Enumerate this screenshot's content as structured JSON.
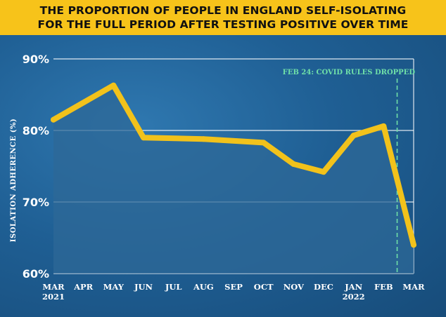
{
  "title_lines": [
    "THE PROPORTION OF PEOPLE IN ENGLAND SELF-ISOLATING",
    "FOR THE FULL PERIOD AFTER TESTING POSITIVE OVER TIME"
  ],
  "colors": {
    "title_bg": "#f7c31a",
    "line": "#f2c21b",
    "plot_fill": "#2e6897",
    "grid": "#ffffff",
    "annotation": "#6fe0a8"
  },
  "chart_data": {
    "type": "line",
    "title": "THE PROPORTION OF PEOPLE IN ENGLAND SELF-ISOLATING FOR THE FULL PERIOD AFTER TESTING POSITIVE OVER TIME",
    "ylabel": "ISOLATION ADHERENCE (%)",
    "xlabel": "",
    "ylim": [
      60,
      90
    ],
    "yticks": [
      {
        "value": 90,
        "label": "90%"
      },
      {
        "value": 80,
        "label": "80%"
      },
      {
        "value": 70,
        "label": "70%"
      },
      {
        "value": 60,
        "label": "60%"
      }
    ],
    "xticks": [
      {
        "x": 0,
        "label": "MAR",
        "sub": "2021"
      },
      {
        "x": 1,
        "label": "APR"
      },
      {
        "x": 2,
        "label": "MAY"
      },
      {
        "x": 3,
        "label": "JUN"
      },
      {
        "x": 4,
        "label": "JUL"
      },
      {
        "x": 5,
        "label": "AUG"
      },
      {
        "x": 6,
        "label": "SEP"
      },
      {
        "x": 7,
        "label": "OCT"
      },
      {
        "x": 8,
        "label": "NOV"
      },
      {
        "x": 9,
        "label": "DEC"
      },
      {
        "x": 10,
        "label": "JAN",
        "sub": "2022"
      },
      {
        "x": 11,
        "label": "FEB"
      },
      {
        "x": 12,
        "label": "MAR"
      }
    ],
    "points": [
      {
        "x": 0,
        "y": 81.5
      },
      {
        "x": 2,
        "y": 86.3
      },
      {
        "x": 3,
        "y": 79.0
      },
      {
        "x": 5,
        "y": 78.8
      },
      {
        "x": 7,
        "y": 78.3
      },
      {
        "x": 8,
        "y": 75.3
      },
      {
        "x": 9,
        "y": 74.2
      },
      {
        "x": 10,
        "y": 79.3
      },
      {
        "x": 11,
        "y": 80.6
      },
      {
        "x": 12,
        "y": 64.0
      }
    ],
    "annotation": {
      "x": 11.45,
      "label": "FEB 24: COVID RULES DROPPED"
    },
    "grid": true
  }
}
